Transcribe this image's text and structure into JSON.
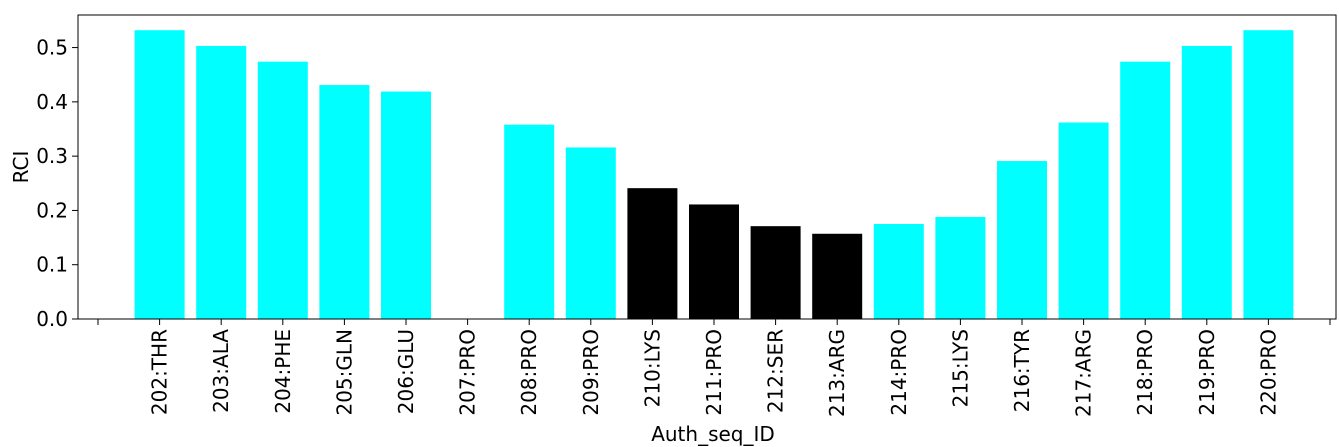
{
  "chart_data": {
    "type": "bar",
    "title": "",
    "xlabel": "Auth_seq_ID",
    "ylabel": "RCI",
    "ylim": [
      0,
      0.56
    ],
    "yticks": [
      "0.0",
      "0.1",
      "0.2",
      "0.3",
      "0.4",
      "0.5"
    ],
    "grid": false,
    "categories": [
      "202:THR",
      "203:ALA",
      "204:PHE",
      "205:GLN",
      "206:GLU",
      "207:PRO",
      "208:PRO",
      "209:PRO",
      "210:LYS",
      "211:PRO",
      "212:SER",
      "213:ARG",
      "214:PRO",
      "215:LYS",
      "216:TYR",
      "217:ARG",
      "218:PRO",
      "219:PRO",
      "220:PRO"
    ],
    "values": [
      0.532,
      0.503,
      0.474,
      0.431,
      0.419,
      0.0,
      0.358,
      0.316,
      0.241,
      0.211,
      0.171,
      0.157,
      0.175,
      0.188,
      0.291,
      0.362,
      0.474,
      0.503,
      0.532
    ],
    "bar_colors": [
      "#00ffff",
      "#00ffff",
      "#00ffff",
      "#00ffff",
      "#00ffff",
      "#00ffff",
      "#00ffff",
      "#00ffff",
      "#000000",
      "#000000",
      "#000000",
      "#000000",
      "#00ffff",
      "#00ffff",
      "#00ffff",
      "#00ffff",
      "#00ffff",
      "#00ffff",
      "#00ffff"
    ]
  }
}
